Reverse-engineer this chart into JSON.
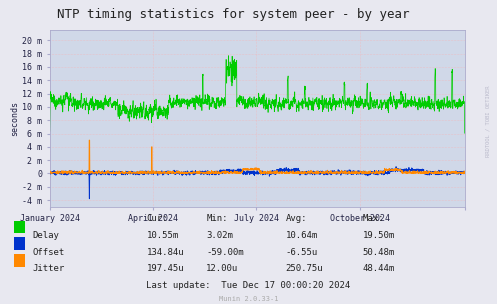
{
  "title": "NTP timing statistics for system peer - by year",
  "ylabel": "seconds",
  "background_color": "#e8e8f0",
  "plot_bg_color": "#d0d8e8",
  "grid_color": "#ffaaaa",
  "delay_color": "#00cc00",
  "offset_color": "#0033cc",
  "jitter_color": "#ff8800",
  "ytick_vals": [
    -0.004,
    -0.002,
    0.0,
    0.002,
    0.004,
    0.006,
    0.008,
    0.01,
    0.012,
    0.014,
    0.016,
    0.018,
    0.02
  ],
  "ytick_labels": [
    "-4 m",
    "-2 m",
    "0",
    "2 m",
    "4 m",
    "6 m",
    "8 m",
    "10 m",
    "12 m",
    "14 m",
    "16 m",
    "18 m",
    "20 m"
  ],
  "xtick_positions": [
    0,
    91,
    182,
    274,
    366
  ],
  "xtick_labels": [
    "January 2024",
    "April 2024",
    "July 2024",
    "October 2024",
    ""
  ],
  "ylim_low": -0.005,
  "ylim_high": 0.0215,
  "xlim_low": 0,
  "xlim_high": 366,
  "legend_labels": [
    "Delay",
    "Offset",
    "Jitter"
  ],
  "stats_header": [
    "Cur:",
    "Min:",
    "Avg:",
    "Max:"
  ],
  "stats_delay": [
    "10.55m",
    "3.02m",
    "10.64m",
    "19.50m"
  ],
  "stats_offset": [
    "134.84u",
    "-59.00m",
    "-6.55u",
    "50.48m"
  ],
  "stats_jitter": [
    "197.45u",
    "12.00u",
    "250.75u",
    "48.44m"
  ],
  "last_update": "Last update:  Tue Dec 17 00:00:20 2024",
  "munin_version": "Munin 2.0.33-1",
  "watermark": "RRDTOOL / TOBI OETIKER",
  "title_fontsize": 9,
  "axis_fontsize": 6,
  "stats_fontsize": 6.5
}
